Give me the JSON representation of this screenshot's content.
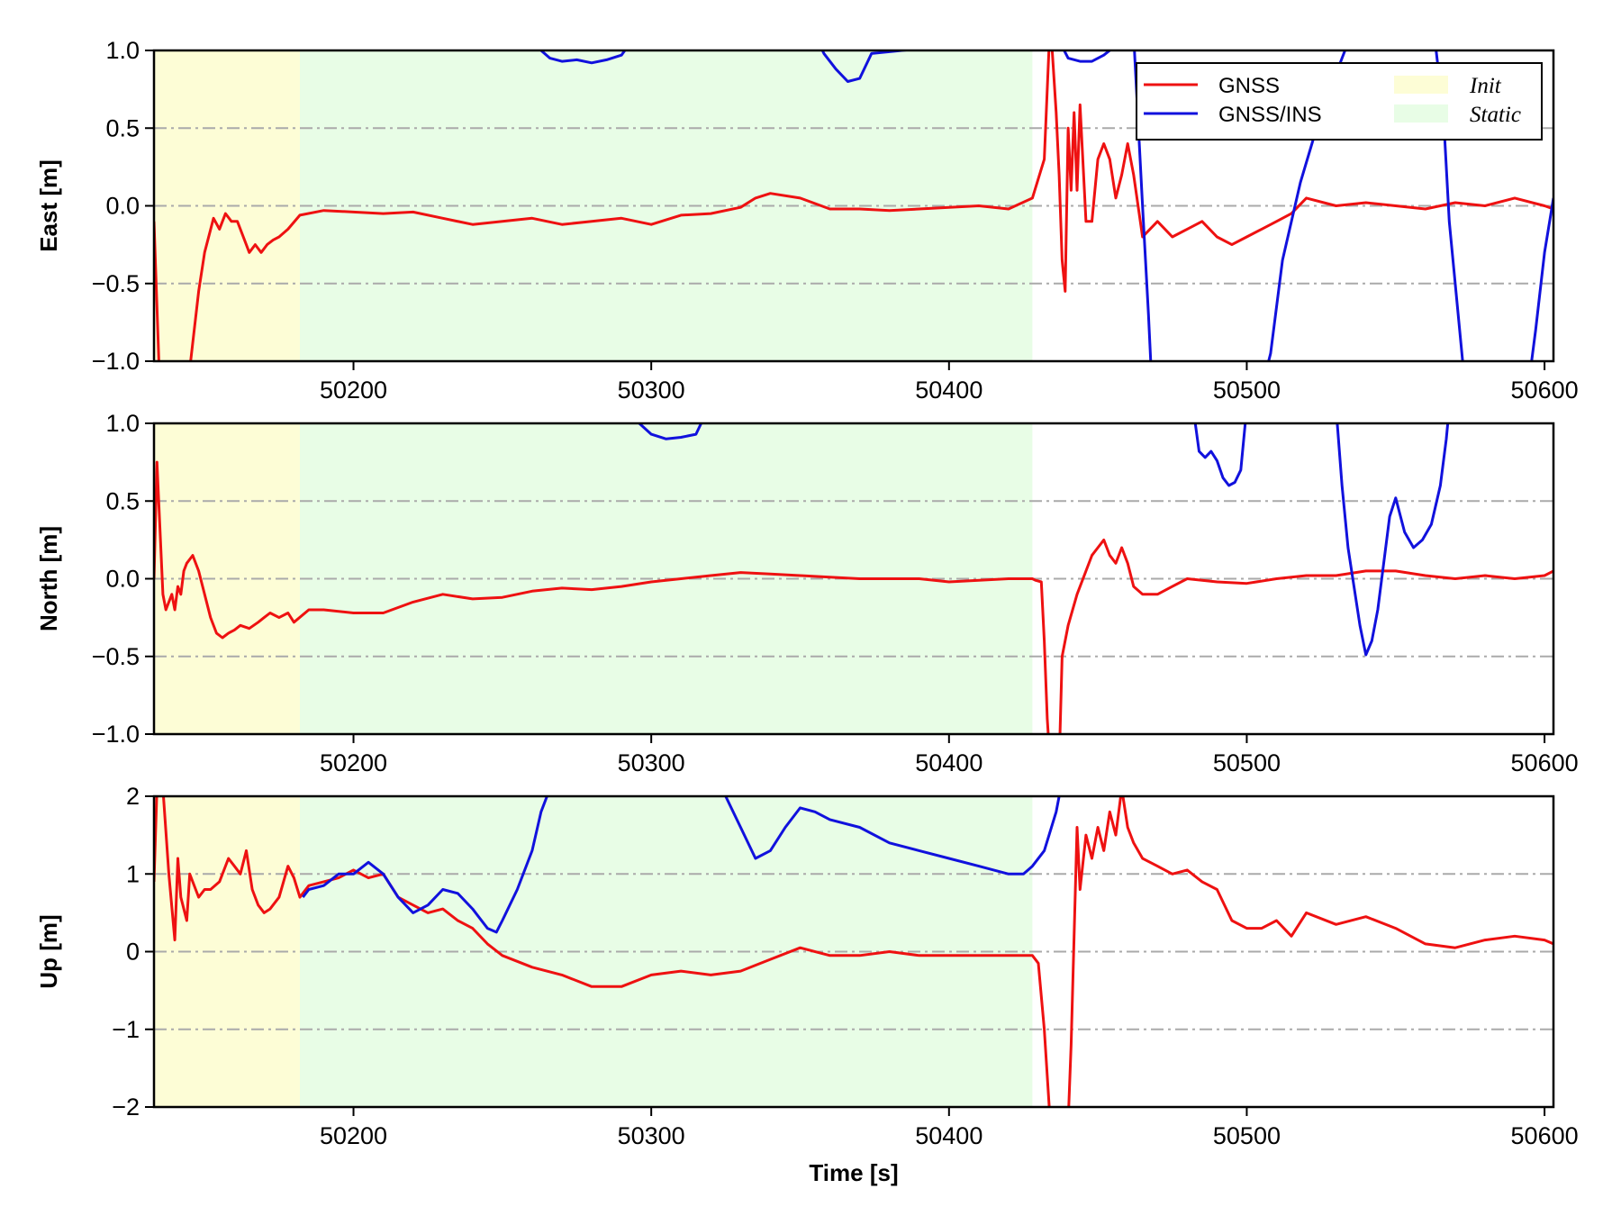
{
  "colors": {
    "gnss": "#ee1111",
    "gnss_ins": "#1111dd",
    "init_region": "#fdfdd6",
    "static_region": "#e8fde6",
    "grid": "#aaaaaa"
  },
  "legend": {
    "gnss": "GNSS",
    "gnss_ins": "GNSS/INS",
    "init": "Init",
    "static": "Static",
    "placement": "upper-right of first panel"
  },
  "chart_data": [
    {
      "type": "line",
      "ylabel": "East [m]",
      "xlabel": "",
      "xlim": [
        50133,
        50603
      ],
      "ylim": [
        -1.0,
        1.0
      ],
      "xticks": [
        50200,
        50300,
        50400,
        50500,
        50600
      ],
      "yticks": [
        -1.0,
        -0.5,
        0.0,
        0.5,
        1.0
      ],
      "ytick_labels": [
        "−1.0",
        "−0.5",
        "0.0",
        "0.5",
        "1.0"
      ],
      "grid": "dash-dot horizontal at y ticks",
      "regions": [
        {
          "name": "Init",
          "x": [
            50133,
            50182
          ]
        },
        {
          "name": "Static",
          "x": [
            50182,
            50428
          ]
        }
      ],
      "series": [
        {
          "name": "GNSS",
          "color_key": "gnss",
          "x": [
            50133,
            50135,
            50140,
            50145,
            50148,
            50150,
            50153,
            50155,
            50157,
            50159,
            50161,
            50163,
            50165,
            50167,
            50169,
            50171,
            50173,
            50175,
            50178,
            50182,
            50190,
            50200,
            50210,
            50220,
            50230,
            50240,
            50250,
            50260,
            50270,
            50280,
            50290,
            50300,
            50310,
            50320,
            50330,
            50335,
            50340,
            50350,
            50360,
            50370,
            50380,
            50390,
            50400,
            50410,
            50420,
            50428,
            50432,
            50434,
            50436,
            50437,
            50438,
            50439,
            50440,
            50441,
            50442,
            50443,
            50444,
            50446,
            50448,
            50450,
            50452,
            50454,
            50456,
            50458,
            50460,
            50462,
            50465,
            50470,
            50475,
            50480,
            50485,
            50490,
            50495,
            50500,
            50505,
            50510,
            50515,
            50520,
            50530,
            50540,
            50550,
            50560,
            50570,
            50580,
            50590,
            50600,
            50603
          ],
          "y": [
            -0.1,
            -1.2,
            -1.2,
            -1.05,
            -0.55,
            -0.3,
            -0.08,
            -0.15,
            -0.05,
            -0.1,
            -0.1,
            -0.2,
            -0.3,
            -0.25,
            -0.3,
            -0.25,
            -0.22,
            -0.2,
            -0.15,
            -0.06,
            -0.03,
            -0.04,
            -0.05,
            -0.04,
            -0.08,
            -0.12,
            -0.1,
            -0.08,
            -0.12,
            -0.1,
            -0.08,
            -0.12,
            -0.06,
            -0.05,
            -0.01,
            0.05,
            0.08,
            0.05,
            -0.02,
            -0.02,
            -0.03,
            -0.02,
            -0.01,
            0.0,
            -0.02,
            0.05,
            0.3,
            1.2,
            0.6,
            0.2,
            -0.35,
            -0.55,
            0.5,
            0.1,
            0.6,
            0.1,
            0.65,
            -0.1,
            -0.1,
            0.3,
            0.4,
            0.3,
            0.05,
            0.2,
            0.4,
            0.2,
            -0.2,
            -0.1,
            -0.2,
            -0.15,
            -0.1,
            -0.2,
            -0.25,
            -0.2,
            -0.15,
            -0.1,
            -0.05,
            0.05,
            0.0,
            0.02,
            0.0,
            -0.02,
            0.02,
            0.0,
            0.05,
            0.0,
            -0.02
          ]
        },
        {
          "name": "GNSS/INS",
          "color_key": "gnss_ins",
          "x": [
            50261,
            50263,
            50266,
            50270,
            50275,
            50280,
            50285,
            50290,
            50293,
            50355,
            50358,
            50362,
            50366,
            50370,
            50374,
            50436,
            50440,
            50444,
            50448,
            50452,
            50454,
            50455,
            50462,
            50465,
            50467,
            50468,
            50506,
            50508,
            50512,
            50518,
            50525,
            50532,
            50535,
            50563,
            50566,
            50568,
            50572,
            50573,
            50595,
            50597,
            50600,
            50603
          ],
          "y": [
            1.1,
            1.0,
            0.95,
            0.93,
            0.94,
            0.92,
            0.94,
            0.97,
            1.05,
            1.1,
            0.98,
            0.88,
            0.8,
            0.82,
            0.98,
            1.1,
            0.95,
            0.93,
            0.93,
            0.97,
            1.0,
            1.1,
            1.1,
            0.0,
            -0.7,
            -1.1,
            -1.1,
            -0.95,
            -0.35,
            0.15,
            0.6,
            0.95,
            1.1,
            1.1,
            0.6,
            -0.1,
            -0.9,
            -1.1,
            -1.1,
            -0.8,
            -0.3,
            0.05
          ]
        }
      ]
    },
    {
      "type": "line",
      "ylabel": "North [m]",
      "xlabel": "",
      "xlim": [
        50133,
        50603
      ],
      "ylim": [
        -1.0,
        1.0
      ],
      "xticks": [
        50200,
        50300,
        50400,
        50500,
        50600
      ],
      "yticks": [
        -1.0,
        -0.5,
        0.0,
        0.5,
        1.0
      ],
      "ytick_labels": [
        "−1.0",
        "−0.5",
        "0.0",
        "0.5",
        "1.0"
      ],
      "grid": "dash-dot horizontal at y ticks",
      "regions": [
        {
          "name": "Init",
          "x": [
            50133,
            50182
          ]
        },
        {
          "name": "Static",
          "x": [
            50182,
            50428
          ]
        }
      ],
      "series": [
        {
          "name": "GNSS",
          "color_key": "gnss",
          "x": [
            50133,
            50134,
            50136,
            50137,
            50138,
            50139,
            50140,
            50141,
            50142,
            50143,
            50144,
            50146,
            50148,
            50150,
            50152,
            50154,
            50156,
            50158,
            50160,
            50162,
            50165,
            50168,
            50170,
            50172,
            50175,
            50178,
            50180,
            50185,
            50190,
            50200,
            50210,
            50220,
            50230,
            50240,
            50250,
            50260,
            50270,
            50280,
            50290,
            50300,
            50310,
            50320,
            50330,
            50340,
            50350,
            50360,
            50370,
            50380,
            50390,
            50400,
            50410,
            50420,
            50428,
            50429,
            50431,
            50432,
            50433,
            50434,
            50435,
            50436,
            50437,
            50438,
            50440,
            50443,
            50446,
            50448,
            50450,
            50452,
            50454,
            50456,
            50458,
            50460,
            50462,
            50465,
            50470,
            50475,
            50480,
            50490,
            50500,
            50510,
            50520,
            50530,
            50540,
            50550,
            50560,
            50570,
            50580,
            50590,
            50600,
            50603
          ],
          "y": [
            0.0,
            0.75,
            -0.1,
            -0.2,
            -0.15,
            -0.1,
            -0.2,
            -0.05,
            -0.1,
            0.05,
            0.1,
            0.15,
            0.05,
            -0.1,
            -0.25,
            -0.35,
            -0.38,
            -0.35,
            -0.33,
            -0.3,
            -0.32,
            -0.28,
            -0.25,
            -0.22,
            -0.25,
            -0.22,
            -0.28,
            -0.2,
            -0.2,
            -0.22,
            -0.22,
            -0.15,
            -0.1,
            -0.13,
            -0.12,
            -0.08,
            -0.06,
            -0.07,
            -0.05,
            -0.02,
            0.0,
            0.02,
            0.04,
            0.03,
            0.02,
            0.01,
            0.0,
            0.0,
            0.0,
            -0.02,
            -0.01,
            0.0,
            0.0,
            -0.01,
            -0.02,
            -0.4,
            -0.9,
            -1.2,
            -1.2,
            -1.2,
            -1.2,
            -0.5,
            -0.3,
            -0.1,
            0.05,
            0.15,
            0.2,
            0.25,
            0.15,
            0.1,
            0.2,
            0.1,
            -0.05,
            -0.1,
            -0.1,
            -0.05,
            0.0,
            -0.02,
            -0.03,
            0.0,
            0.02,
            0.02,
            0.05,
            0.05,
            0.02,
            0.0,
            0.02,
            0.0,
            0.02,
            0.05
          ]
        },
        {
          "name": "GNSS/INS",
          "color_key": "gnss_ins",
          "x": [
            50294,
            50296,
            50300,
            50305,
            50310,
            50315,
            50318,
            50482,
            50484,
            50486,
            50488,
            50490,
            50492,
            50494,
            50496,
            50498,
            50500,
            50530,
            50532,
            50534,
            50536,
            50538,
            50540,
            50542,
            50544,
            50546,
            50548,
            50550,
            50553,
            50556,
            50559,
            50562,
            50565,
            50567,
            50568
          ],
          "y": [
            1.1,
            1.0,
            0.93,
            0.9,
            0.91,
            0.93,
            1.05,
            1.1,
            0.82,
            0.78,
            0.82,
            0.76,
            0.65,
            0.6,
            0.62,
            0.7,
            1.1,
            1.1,
            0.6,
            0.2,
            -0.05,
            -0.3,
            -0.49,
            -0.4,
            -0.2,
            0.1,
            0.4,
            0.52,
            0.3,
            0.2,
            0.25,
            0.35,
            0.6,
            0.9,
            1.1
          ]
        }
      ]
    },
    {
      "type": "line",
      "ylabel": "Up [m]",
      "xlabel": "Time [s]",
      "xlim": [
        50133,
        50603
      ],
      "ylim": [
        -2,
        2
      ],
      "xticks": [
        50200,
        50300,
        50400,
        50500,
        50600
      ],
      "yticks": [
        -2,
        -1,
        0,
        1,
        2
      ],
      "ytick_labels": [
        "−2",
        "−1",
        "0",
        "1",
        "2"
      ],
      "grid": "dash-dot horizontal at y ticks",
      "regions": [
        {
          "name": "Init",
          "x": [
            50133,
            50182
          ]
        },
        {
          "name": "Static",
          "x": [
            50182,
            50428
          ]
        }
      ],
      "series": [
        {
          "name": "GNSS",
          "color_key": "gnss",
          "x": [
            50133,
            50134,
            50136,
            50138,
            50140,
            50141,
            50142,
            50144,
            50145,
            50146,
            50148,
            50150,
            50152,
            50155,
            50158,
            50160,
            50162,
            50164,
            50166,
            50168,
            50170,
            50172,
            50175,
            50178,
            50180,
            50182,
            50185,
            50190,
            50195,
            50200,
            50205,
            50210,
            50215,
            50220,
            50225,
            50230,
            50235,
            50240,
            50245,
            50250,
            50260,
            50270,
            50280,
            50290,
            50300,
            50310,
            50320,
            50330,
            50340,
            50350,
            50360,
            50370,
            50380,
            50390,
            50400,
            50410,
            50420,
            50428,
            50430,
            50432,
            50434,
            50436,
            50438,
            50440,
            50441,
            50442,
            50443,
            50444,
            50446,
            50448,
            50450,
            50452,
            50454,
            50456,
            50458,
            50460,
            50462,
            50465,
            50470,
            50475,
            50480,
            50485,
            50490,
            50495,
            50500,
            50505,
            50510,
            50515,
            50520,
            50530,
            50540,
            50550,
            50560,
            50570,
            50580,
            50590,
            50600,
            50603
          ],
          "y": [
            0.9,
            2.1,
            2.1,
            1.0,
            0.15,
            1.2,
            0.7,
            0.4,
            1.0,
            0.9,
            0.7,
            0.8,
            0.8,
            0.9,
            1.2,
            1.1,
            1.0,
            1.3,
            0.8,
            0.6,
            0.5,
            0.55,
            0.7,
            1.1,
            0.95,
            0.7,
            0.85,
            0.9,
            0.95,
            1.05,
            0.95,
            1.0,
            0.7,
            0.6,
            0.5,
            0.55,
            0.4,
            0.3,
            0.1,
            -0.05,
            -0.2,
            -0.3,
            -0.45,
            -0.45,
            -0.3,
            -0.25,
            -0.3,
            -0.25,
            -0.1,
            0.05,
            -0.05,
            -0.05,
            0.0,
            -0.05,
            -0.05,
            -0.05,
            -0.05,
            -0.05,
            -0.15,
            -1.0,
            -2.2,
            -2.2,
            -2.2,
            -2.2,
            -1.2,
            0.2,
            1.6,
            0.8,
            1.5,
            1.2,
            1.6,
            1.3,
            1.8,
            1.5,
            2.1,
            1.6,
            1.4,
            1.2,
            1.1,
            1.0,
            1.05,
            0.9,
            0.8,
            0.4,
            0.3,
            0.3,
            0.4,
            0.2,
            0.5,
            0.35,
            0.45,
            0.3,
            0.1,
            0.05,
            0.15,
            0.2,
            0.15,
            0.1
          ]
        },
        {
          "name": "GNSS/INS",
          "color_key": "gnss_ins",
          "x": [
            50183,
            50185,
            50190,
            50195,
            50200,
            50205,
            50210,
            50215,
            50220,
            50225,
            50230,
            50235,
            50240,
            50245,
            50248,
            50250,
            50255,
            50260,
            50263,
            50266,
            50268,
            50320,
            50325,
            50330,
            50335,
            50340,
            50345,
            50350,
            50355,
            50360,
            50370,
            50380,
            50390,
            50400,
            50410,
            50420,
            50425,
            50428,
            50432,
            50436,
            50438
          ],
          "y": [
            0.7,
            0.8,
            0.85,
            1.0,
            1.0,
            1.15,
            1.0,
            0.7,
            0.5,
            0.6,
            0.8,
            0.75,
            0.55,
            0.3,
            0.25,
            0.4,
            0.8,
            1.3,
            1.8,
            2.1,
            2.2,
            2.2,
            2.0,
            1.6,
            1.2,
            1.3,
            1.6,
            1.85,
            1.8,
            1.7,
            1.6,
            1.4,
            1.3,
            1.2,
            1.1,
            1.0,
            1.0,
            1.1,
            1.3,
            1.8,
            2.2
          ]
        }
      ]
    }
  ]
}
